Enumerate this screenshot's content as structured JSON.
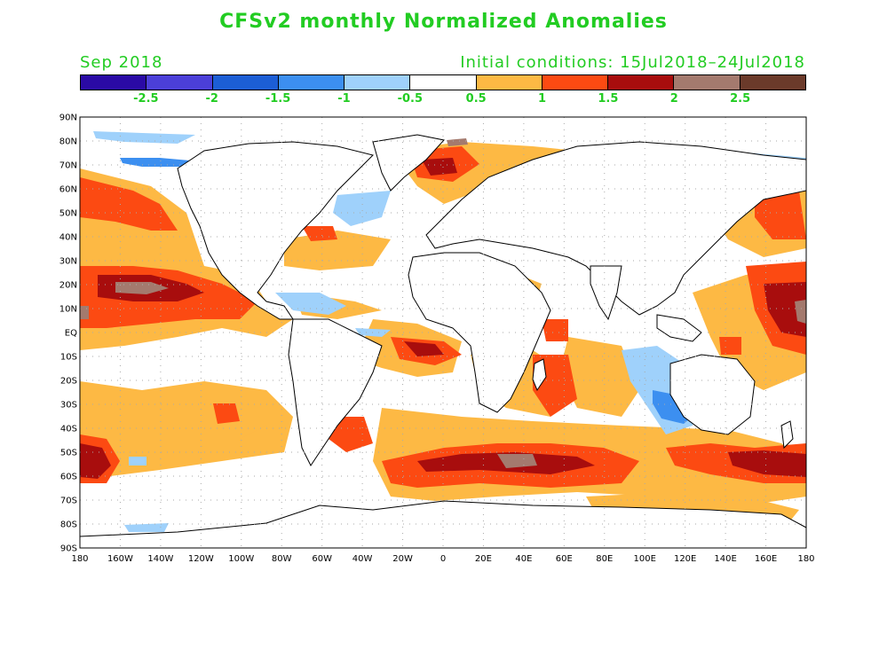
{
  "title": "CFSv2 monthly Normalized Anomalies",
  "month_label": "Sep 2018",
  "ic_label": "Initial conditions: 15Jul2018–24Jul2018",
  "colorbar": {
    "colors": [
      "#2a0aa5",
      "#4b3fd8",
      "#1c5ed5",
      "#3c8ff0",
      "#9fd1fb",
      "#ffffff",
      "#fdb944",
      "#fc4a12",
      "#a80d0d",
      "#a47a6e",
      "#6b3a2a"
    ],
    "labels": [
      "-2.5",
      "-2",
      "-1.5",
      "-1",
      "-0.5",
      "0.5",
      "1",
      "1.5",
      "2",
      "2.5"
    ]
  },
  "lat_labels": [
    "90N",
    "80N",
    "70N",
    "60N",
    "50N",
    "40N",
    "30N",
    "20N",
    "10N",
    "EQ",
    "10S",
    "20S",
    "30S",
    "40S",
    "50S",
    "60S",
    "70S",
    "80S",
    "90S"
  ],
  "lon_labels": [
    "180",
    "160W",
    "140W",
    "120W",
    "100W",
    "80W",
    "60W",
    "40W",
    "20W",
    "0",
    "20E",
    "40E",
    "60E",
    "80E",
    "100E",
    "120E",
    "140E",
    "160E",
    "180"
  ],
  "colors": {
    "title": "#22cc22",
    "land": "#ffffff",
    "coast": "#000000",
    "grid": "#aaaaaa"
  }
}
